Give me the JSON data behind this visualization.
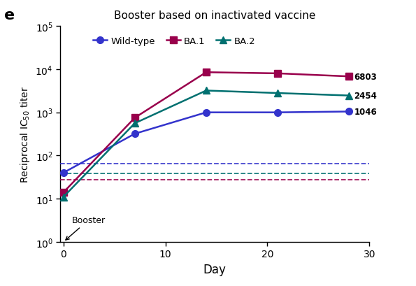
{
  "title": "Booster based on inactivated vaccine",
  "xlabel": "Day",
  "ylabel": "Reciprocal IC$_{50}$ titer",
  "panel_label": "e",
  "x_days": [
    0,
    7,
    14,
    21,
    28
  ],
  "wild_type_y": [
    40,
    320,
    1000,
    1000,
    1046
  ],
  "ba1_y": [
    14,
    750,
    8500,
    8000,
    6803
  ],
  "ba2_y": [
    11,
    560,
    3200,
    2800,
    2454
  ],
  "wild_type_color": "#3333cc",
  "ba1_color": "#99004c",
  "ba2_color": "#007070",
  "dashed_blue_y": 65,
  "dashed_teal_y": 38,
  "dashed_red_y": 28,
  "end_labels": [
    "6803",
    "2454",
    "1046"
  ],
  "ylim_bottom": 1,
  "ylim_top": 100000,
  "xlim_left": -0.3,
  "xlim_right": 30,
  "xticks": [
    0,
    10,
    20,
    30
  ],
  "booster_text": "Booster",
  "legend_labels": [
    "Wild-type",
    "BA.1",
    "BA.2"
  ]
}
